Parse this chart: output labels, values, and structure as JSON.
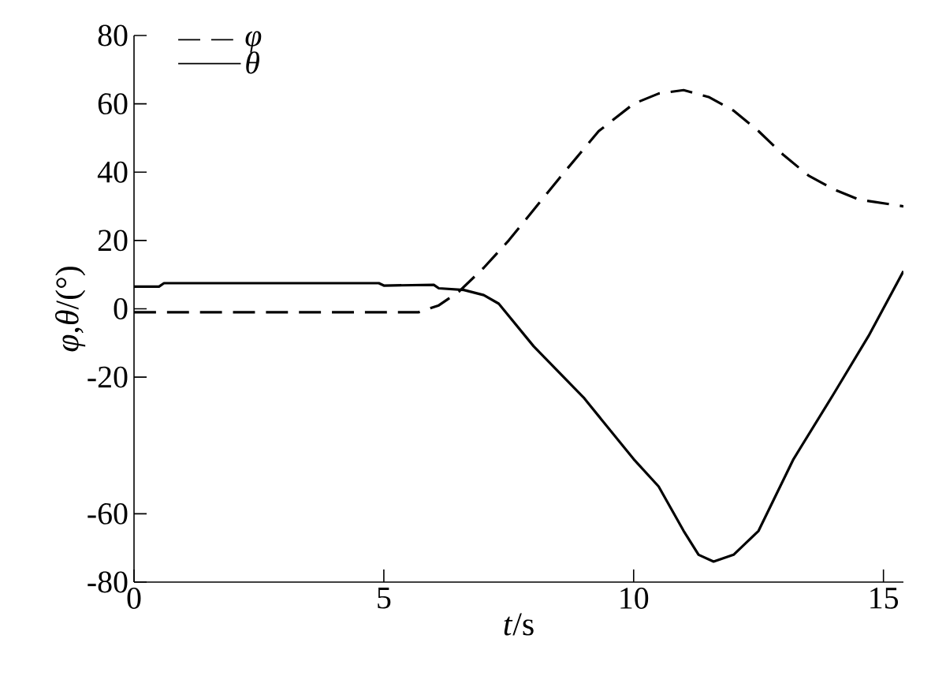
{
  "chart_data": {
    "type": "line",
    "xlabel": "*t*/s",
    "ylabel": "*φ*,*θ*/(°)",
    "xlim": [
      0,
      15.4
    ],
    "ylim": [
      -80,
      80
    ],
    "xticks": [
      0,
      5,
      10,
      15
    ],
    "yticks": [
      -80,
      -60,
      -20,
      0,
      20,
      40,
      60,
      80
    ],
    "legend": "top left",
    "grid": false,
    "marker": "none",
    "series": [
      {
        "name": "φ",
        "color": "#000000",
        "line_style": "dashed",
        "x": [
          0,
          5.7,
          6.1,
          6.5,
          7,
          7.5,
          8.5,
          9.3,
          10,
          10.5,
          11,
          11.5,
          12,
          12.5,
          13,
          13.5,
          14,
          14.5,
          15.4
        ],
        "values": [
          -1,
          -1,
          1,
          5,
          12,
          20,
          38,
          52,
          60,
          63,
          64,
          62,
          58,
          52,
          45,
          39,
          35,
          32,
          30
        ]
      },
      {
        "name": "θ",
        "color": "#000000",
        "line_style": "solid",
        "x": [
          0,
          0.5,
          0.6,
          4.9,
          5.0,
          6.0,
          6.1,
          6.6,
          7.0,
          7.3,
          8,
          9,
          10,
          10.5,
          11,
          11.3,
          11.6,
          12.0,
          12.5,
          13.2,
          14,
          14.7,
          15.4
        ],
        "values": [
          6.5,
          6.5,
          7.5,
          7.5,
          6.8,
          7,
          6,
          5.5,
          4,
          1.5,
          -11,
          -26,
          -44,
          -52,
          -65,
          -72,
          -74,
          -72,
          -65,
          -44,
          -25,
          -8,
          11
        ]
      }
    ]
  }
}
